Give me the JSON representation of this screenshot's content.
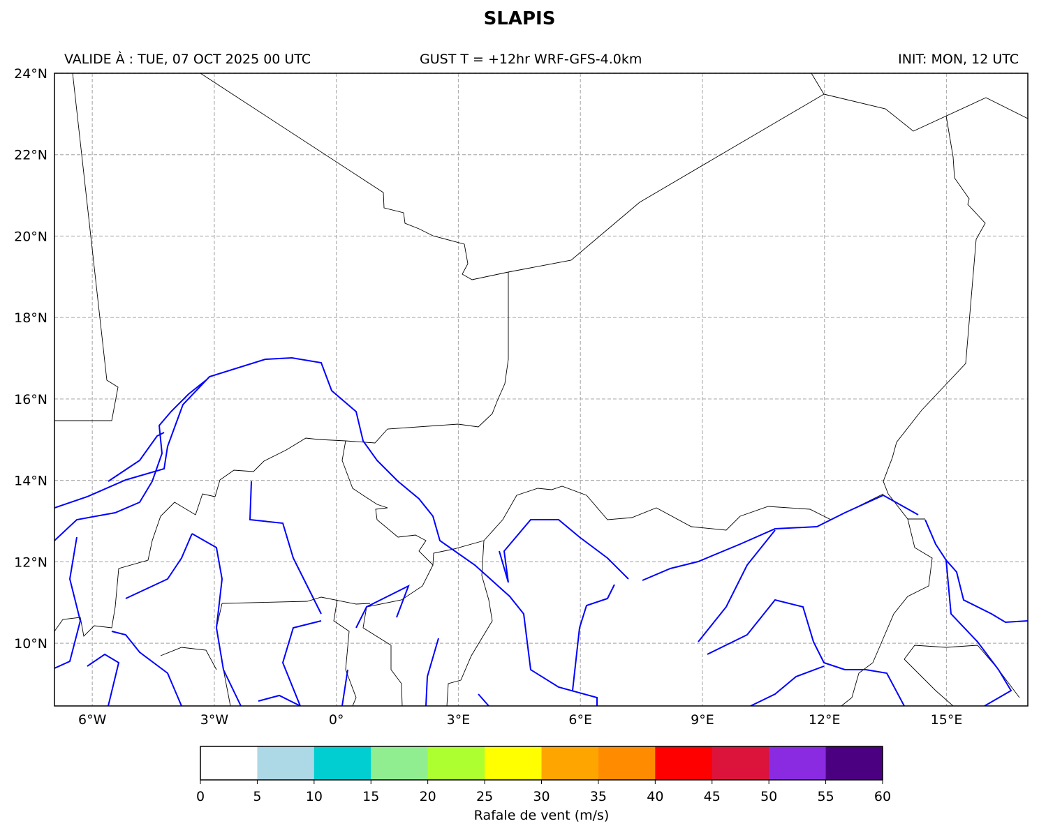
{
  "title": "SLAPIS",
  "header": {
    "valid": "VALIDE À : TUE, 07 OCT 2025 00 UTC",
    "product": "GUST T = +12hr WRF-GFS-4.0km",
    "init": "INIT: MON, 12 UTC"
  },
  "map": {
    "lon_range": [
      -6.93,
      17.0
    ],
    "lat_range": [
      8.46,
      24.0
    ],
    "grid": true,
    "lon_ticks": [
      {
        "value": -6,
        "label": "6°W"
      },
      {
        "value": -3,
        "label": "3°W"
      },
      {
        "value": 0,
        "label": "0°"
      },
      {
        "value": 3,
        "label": "3°E"
      },
      {
        "value": 6,
        "label": "6°E"
      },
      {
        "value": 9,
        "label": "9°E"
      },
      {
        "value": 12,
        "label": "12°E"
      },
      {
        "value": 15,
        "label": "15°E"
      }
    ],
    "lat_ticks": [
      {
        "value": 24,
        "label": "24°N"
      },
      {
        "value": 22,
        "label": "22°N"
      },
      {
        "value": 20,
        "label": "20°N"
      },
      {
        "value": 18,
        "label": "18°N"
      },
      {
        "value": 16,
        "label": "16°N"
      },
      {
        "value": 14,
        "label": "14°N"
      },
      {
        "value": 12,
        "label": "12°N"
      },
      {
        "value": 10,
        "label": "10°N"
      }
    ],
    "border_color": "#000000",
    "river_color": "#0000ff"
  },
  "colorbar": {
    "label": "Rafale de vent (m/s)",
    "ticks": [
      "0",
      "5",
      "10",
      "15",
      "20",
      "25",
      "30",
      "35",
      "40",
      "45",
      "50",
      "55",
      "60"
    ],
    "colors": [
      "#ffffff",
      "#add8e6",
      "#00ced1",
      "#90ee90",
      "#adff2f",
      "#ffff00",
      "#ffa500",
      "#ff8c00",
      "#ff0000",
      "#dc143c",
      "#8a2be2",
      "#4b0082"
    ]
  }
}
